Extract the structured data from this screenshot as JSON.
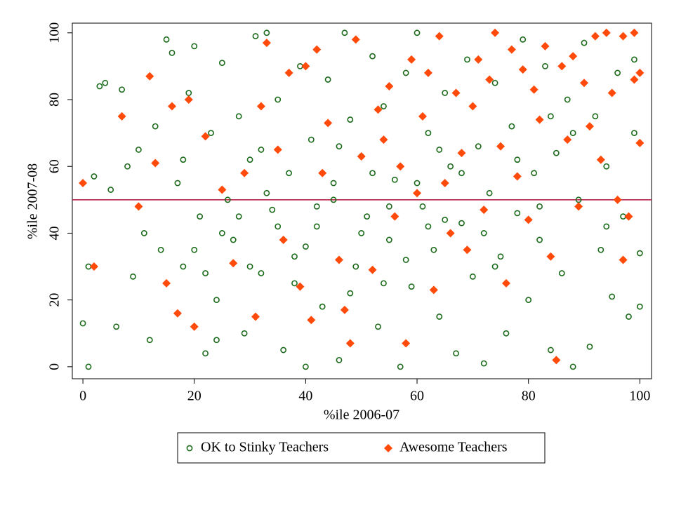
{
  "chart_data": {
    "type": "scatter",
    "xlabel": "%ile 2006-07",
    "ylabel": "%ile 2007-08",
    "xlim": [
      -1.9,
      102.1
    ],
    "ylim": [
      -3.6,
      102.9
    ],
    "xticks": [
      0,
      20,
      40,
      60,
      80,
      100
    ],
    "yticks": [
      0,
      20,
      40,
      60,
      80,
      100
    ],
    "hline": 50,
    "hline_color": "#b0103a",
    "legend": "bottom",
    "series": [
      {
        "name": "OK to Stinky Teachers",
        "color": "#1b6b1b",
        "marker": "circle",
        "x": [
          1,
          0,
          1,
          2,
          3,
          4,
          5,
          6,
          7,
          8,
          9,
          10,
          11,
          12,
          13,
          14,
          15,
          16,
          17,
          18,
          19,
          20,
          21,
          22,
          23,
          24,
          25,
          26,
          27,
          28,
          29,
          30,
          31,
          32,
          33,
          34,
          35,
          36,
          37,
          38,
          39,
          40,
          41,
          42,
          43,
          44,
          45,
          46,
          47,
          48,
          49,
          50,
          51,
          52,
          53,
          54,
          55,
          56,
          57,
          58,
          59,
          60,
          61,
          62,
          63,
          64,
          65,
          66,
          67,
          68,
          69,
          70,
          71,
          72,
          73,
          74,
          75,
          76,
          77,
          78,
          79,
          80,
          81,
          82,
          83,
          84,
          85,
          86,
          87,
          88,
          89,
          90,
          91,
          92,
          93,
          94,
          95,
          96,
          97,
          98,
          99,
          100,
          100,
          99,
          20,
          25,
          30,
          35,
          40,
          45,
          50,
          55,
          60,
          65,
          22,
          28,
          33,
          38,
          42,
          48,
          52,
          58,
          62,
          68,
          72,
          78,
          82,
          88,
          18,
          24,
          32,
          46,
          54,
          64,
          74,
          84,
          94
        ],
        "values": [
          0,
          13,
          30,
          57,
          84,
          85,
          53,
          12,
          83,
          60,
          27,
          65,
          40,
          8,
          72,
          35,
          98,
          94,
          55,
          30,
          82,
          96,
          45,
          4,
          70,
          20,
          91,
          50,
          38,
          75,
          10,
          62,
          99,
          28,
          100,
          47,
          80,
          5,
          58,
          33,
          90,
          0,
          68,
          42,
          18,
          86,
          55,
          2,
          100,
          74,
          30,
          63,
          45,
          93,
          12,
          78,
          38,
          56,
          0,
          88,
          24,
          100,
          48,
          70,
          35,
          15,
          82,
          60,
          4,
          43,
          92,
          27,
          66,
          1,
          52,
          85,
          33,
          10,
          72,
          46,
          98,
          20,
          58,
          38,
          90,
          5,
          64,
          28,
          80,
          0,
          50,
          97,
          6,
          75,
          35,
          60,
          21,
          88,
          45,
          15,
          92,
          34,
          18,
          70,
          35,
          40,
          30,
          42,
          36,
          50,
          40,
          48,
          55,
          44,
          28,
          45,
          52,
          25,
          48,
          22,
          58,
          32,
          42,
          58,
          40,
          62,
          48,
          70,
          62,
          8,
          65,
          66,
          25,
          65,
          30,
          75,
          42
        ]
      },
      {
        "name": "Awesome Teachers",
        "color": "#ff4a0a",
        "marker": "diamond",
        "x": [
          0,
          2,
          7,
          10,
          12,
          13,
          15,
          16,
          17,
          19,
          20,
          22,
          25,
          27,
          29,
          31,
          32,
          33,
          35,
          36,
          37,
          39,
          40,
          41,
          42,
          43,
          44,
          46,
          47,
          48,
          49,
          50,
          52,
          53,
          54,
          55,
          56,
          57,
          58,
          59,
          60,
          61,
          62,
          63,
          64,
          65,
          66,
          67,
          68,
          69,
          70,
          71,
          72,
          73,
          74,
          75,
          76,
          77,
          78,
          79,
          80,
          81,
          82,
          83,
          84,
          85,
          86,
          87,
          88,
          89,
          90,
          91,
          92,
          93,
          94,
          95,
          96,
          97,
          97,
          98,
          99,
          100,
          100,
          99
        ],
        "values": [
          55,
          30,
          75,
          48,
          87,
          61,
          25,
          78,
          16,
          80,
          12,
          69,
          53,
          31,
          58,
          15,
          78,
          97,
          65,
          38,
          88,
          24,
          90,
          14,
          95,
          58,
          73,
          32,
          17,
          7,
          98,
          63,
          29,
          77,
          68,
          84,
          45,
          60,
          7,
          92,
          52,
          75,
          88,
          23,
          99,
          55,
          40,
          82,
          64,
          35,
          78,
          92,
          47,
          86,
          100,
          66,
          25,
          95,
          57,
          89,
          44,
          83,
          74,
          96,
          33,
          2,
          90,
          68,
          93,
          48,
          85,
          72,
          99,
          62,
          100,
          82,
          50,
          32,
          99,
          45,
          100,
          88,
          67,
          86
        ]
      }
    ]
  }
}
